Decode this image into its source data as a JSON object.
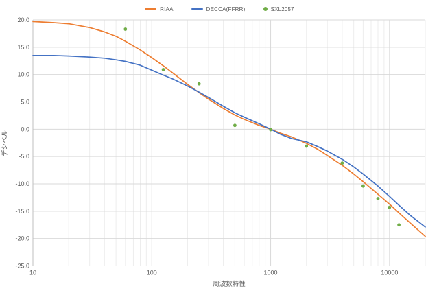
{
  "legend": {
    "items": [
      {
        "label": "RIAA",
        "marker": "line",
        "color": "#ED7D31"
      },
      {
        "label": "DECCA(FFRR)",
        "marker": "line",
        "color": "#4472C4"
      },
      {
        "label": "SXL2057",
        "marker": "dot",
        "color": "#70AD47"
      }
    ]
  },
  "colors": {
    "background": "#FFFFFF",
    "axis_text": "#595959",
    "major_gridline": "#D9D9D9",
    "minor_gridline": "#EDEDED",
    "axis_line": "#BFBFBF",
    "riaa_orange": "#ED7D31",
    "decca_blue": "#4472C4",
    "sxl_green": "#70AD47"
  },
  "chart_data": {
    "type": "line",
    "title": "",
    "xlabel": "周波数特性",
    "ylabel": "デシベル",
    "x_axis": {
      "scale": "log",
      "min": 10,
      "max": 20000,
      "major_ticks": [
        10,
        100,
        1000,
        10000
      ]
    },
    "y_axis": {
      "min": -25,
      "max": 20,
      "step": 5,
      "tick_decimals": 1
    },
    "grid": "on",
    "legend_position": "top-center",
    "series": [
      {
        "name": "RIAA",
        "type": "line",
        "color": "#ED7D31",
        "points": [
          [
            10,
            19.7
          ],
          [
            15,
            19.5
          ],
          [
            20,
            19.3
          ],
          [
            30,
            18.6
          ],
          [
            40,
            17.8
          ],
          [
            50,
            17.0
          ],
          [
            60,
            16.1
          ],
          [
            80,
            14.5
          ],
          [
            100,
            13.1
          ],
          [
            125,
            11.6
          ],
          [
            150,
            10.3
          ],
          [
            200,
            8.2
          ],
          [
            250,
            6.7
          ],
          [
            300,
            5.5
          ],
          [
            400,
            3.8
          ],
          [
            500,
            2.6
          ],
          [
            600,
            1.8
          ],
          [
            800,
            0.7
          ],
          [
            1000,
            0.0
          ],
          [
            1200,
            -0.7
          ],
          [
            1500,
            -1.4
          ],
          [
            2000,
            -2.6
          ],
          [
            2500,
            -3.7
          ],
          [
            3000,
            -4.8
          ],
          [
            4000,
            -6.6
          ],
          [
            5000,
            -8.2
          ],
          [
            6000,
            -9.6
          ],
          [
            8000,
            -11.9
          ],
          [
            10000,
            -13.7
          ],
          [
            12000,
            -15.3
          ],
          [
            15000,
            -17.2
          ],
          [
            20000,
            -19.6
          ]
        ]
      },
      {
        "name": "DECCA(FFRR)",
        "type": "line",
        "color": "#4472C4",
        "points": [
          [
            10,
            13.5
          ],
          [
            15,
            13.5
          ],
          [
            20,
            13.4
          ],
          [
            30,
            13.2
          ],
          [
            40,
            13.0
          ],
          [
            50,
            12.7
          ],
          [
            60,
            12.4
          ],
          [
            80,
            11.7
          ],
          [
            100,
            10.8
          ],
          [
            125,
            9.9
          ],
          [
            150,
            9.2
          ],
          [
            200,
            7.9
          ],
          [
            250,
            6.8
          ],
          [
            300,
            5.8
          ],
          [
            400,
            4.2
          ],
          [
            500,
            3.0
          ],
          [
            600,
            2.2
          ],
          [
            800,
            1.0
          ],
          [
            1000,
            0.0
          ],
          [
            1200,
            -0.9
          ],
          [
            1500,
            -1.7
          ],
          [
            2000,
            -2.3
          ],
          [
            2500,
            -3.2
          ],
          [
            3000,
            -4.0
          ],
          [
            4000,
            -5.5
          ],
          [
            5000,
            -6.9
          ],
          [
            6000,
            -8.2
          ],
          [
            8000,
            -10.4
          ],
          [
            10000,
            -12.3
          ],
          [
            12000,
            -13.9
          ],
          [
            15000,
            -15.8
          ],
          [
            20000,
            -17.9
          ]
        ]
      },
      {
        "name": "SXL2057",
        "type": "scatter",
        "color": "#70AD47",
        "points": [
          [
            60,
            18.3
          ],
          [
            125,
            10.9
          ],
          [
            250,
            8.3
          ],
          [
            500,
            0.7
          ],
          [
            1000,
            -0.1
          ],
          [
            2000,
            -3.1
          ],
          [
            4000,
            -6.2
          ],
          [
            6000,
            -10.4
          ],
          [
            8000,
            -12.7
          ],
          [
            10000,
            -14.3
          ],
          [
            12000,
            -17.5
          ]
        ]
      }
    ]
  }
}
